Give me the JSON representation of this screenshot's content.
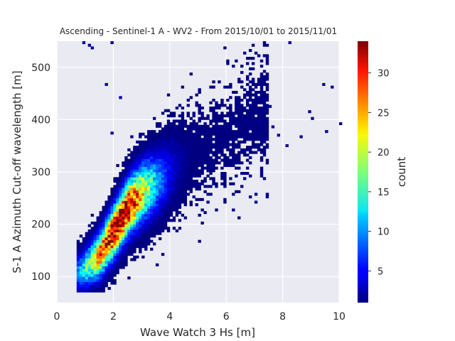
{
  "chart_data": {
    "type": "heatmap",
    "title": "Ascending - Sentinel-1 A - WV2 - From 2015/10/01 to 2015/11/01",
    "xlabel": "Wave Watch 3 Hs [m]",
    "ylabel": "S-1 A Azimuth Cut-off wavelength [m]",
    "xlim": [
      0,
      10
    ],
    "ylim": [
      50,
      550
    ],
    "x_ticks": [
      0,
      2,
      4,
      6,
      8,
      10
    ],
    "x_tick_labels": [
      "0",
      "2",
      "4",
      "6",
      "8",
      "10"
    ],
    "y_ticks": [
      100,
      200,
      300,
      400,
      500
    ],
    "y_tick_labels": [
      "100",
      "200",
      "300",
      "400",
      "500"
    ],
    "grid": true,
    "bin_size": {
      "x": 0.1,
      "y": 5
    },
    "colorbar": {
      "label": "count",
      "min": 1,
      "max": 34,
      "colormap": "jet",
      "ticks": [
        5,
        10,
        15,
        20,
        25,
        30
      ],
      "tick_labels": [
        "5",
        "10",
        "15",
        "20",
        "25",
        "30"
      ]
    },
    "density_model": {
      "ridge": [
        [
          0.9,
          110
        ],
        [
          1.5,
          140
        ],
        [
          2.0,
          185
        ],
        [
          2.5,
          230
        ],
        [
          3.0,
          260
        ],
        [
          4.0,
          300
        ],
        [
          5.0,
          340
        ],
        [
          6.0,
          370
        ],
        [
          7.0,
          400
        ],
        [
          8.0,
          420
        ],
        [
          9.0,
          430
        ],
        [
          10.0,
          440
        ]
      ],
      "peak_count": 34,
      "peak_hs": 2.2,
      "peak_cutoff": 200
    },
    "sparse_cells": [
      [
        0.9,
        545
      ],
      [
        1.1,
        540
      ],
      [
        1.2,
        535
      ],
      [
        1.9,
        545
      ],
      [
        2.2,
        440
      ],
      [
        1.7,
        465
      ],
      [
        1.9,
        372
      ],
      [
        7.3,
        520
      ],
      [
        8.2,
        545
      ],
      [
        7.1,
        395
      ],
      [
        9.4,
        465
      ],
      [
        9.0,
        400
      ],
      [
        9.5,
        375
      ],
      [
        8.6,
        365
      ],
      [
        9.7,
        460
      ],
      [
        8.9,
        413
      ],
      [
        7.5,
        423
      ],
      [
        6.5,
        488
      ],
      [
        7.6,
        384
      ],
      [
        10.0,
        390
      ],
      [
        1.2,
        77
      ],
      [
        7.8,
        368
      ],
      [
        6.9,
        470
      ],
      [
        8.1,
        348
      ]
    ]
  }
}
